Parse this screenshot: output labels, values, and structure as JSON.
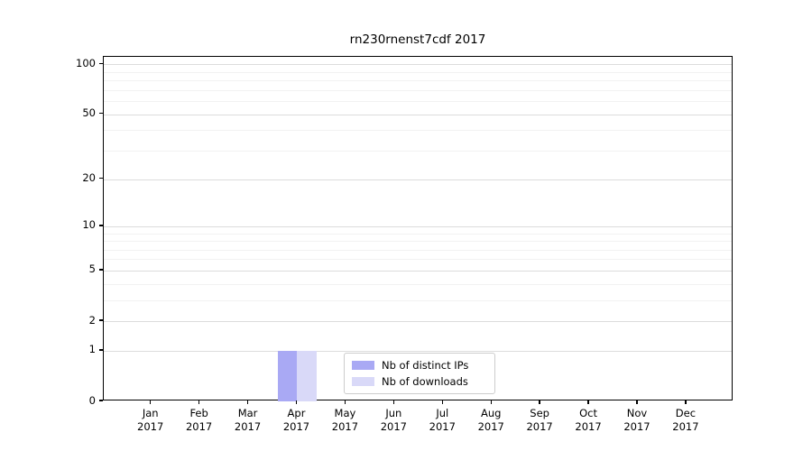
{
  "chart_data": {
    "type": "bar",
    "title": "rn230rnenst7cdf 2017",
    "xlabel": "",
    "ylabel": "",
    "categories": [
      "Jan",
      "Feb",
      "Mar",
      "Apr",
      "May",
      "Jun",
      "Jul",
      "Aug",
      "Sep",
      "Oct",
      "Nov",
      "Dec"
    ],
    "xtick_year": "2017",
    "series": [
      {
        "name": "Nb of distinct IPs",
        "color": "#a9a9f4",
        "values": [
          0,
          0,
          0,
          1,
          0,
          0,
          0,
          0,
          0,
          0,
          0,
          0
        ]
      },
      {
        "name": "Nb of downloads",
        "color": "#d9d9f8",
        "values": [
          0,
          0,
          0,
          1,
          0,
          0,
          0,
          0,
          0,
          0,
          0,
          0
        ]
      }
    ],
    "yscale": "log1p",
    "ylim": [
      0,
      111
    ],
    "y_major_ticks": [
      0,
      1,
      2,
      5,
      10,
      20,
      50,
      100
    ],
    "y_minor_ticks": [
      3,
      4,
      6,
      7,
      8,
      9,
      30,
      40,
      60,
      70,
      80,
      90
    ],
    "grid": "on",
    "legend_position": "lower-center-inside",
    "colors": {
      "axis": "#000000",
      "grid_major": "#dcdcdc",
      "grid_minor": "#f2f2f2",
      "legend_border": "#cccccc",
      "background": "#ffffff"
    }
  }
}
